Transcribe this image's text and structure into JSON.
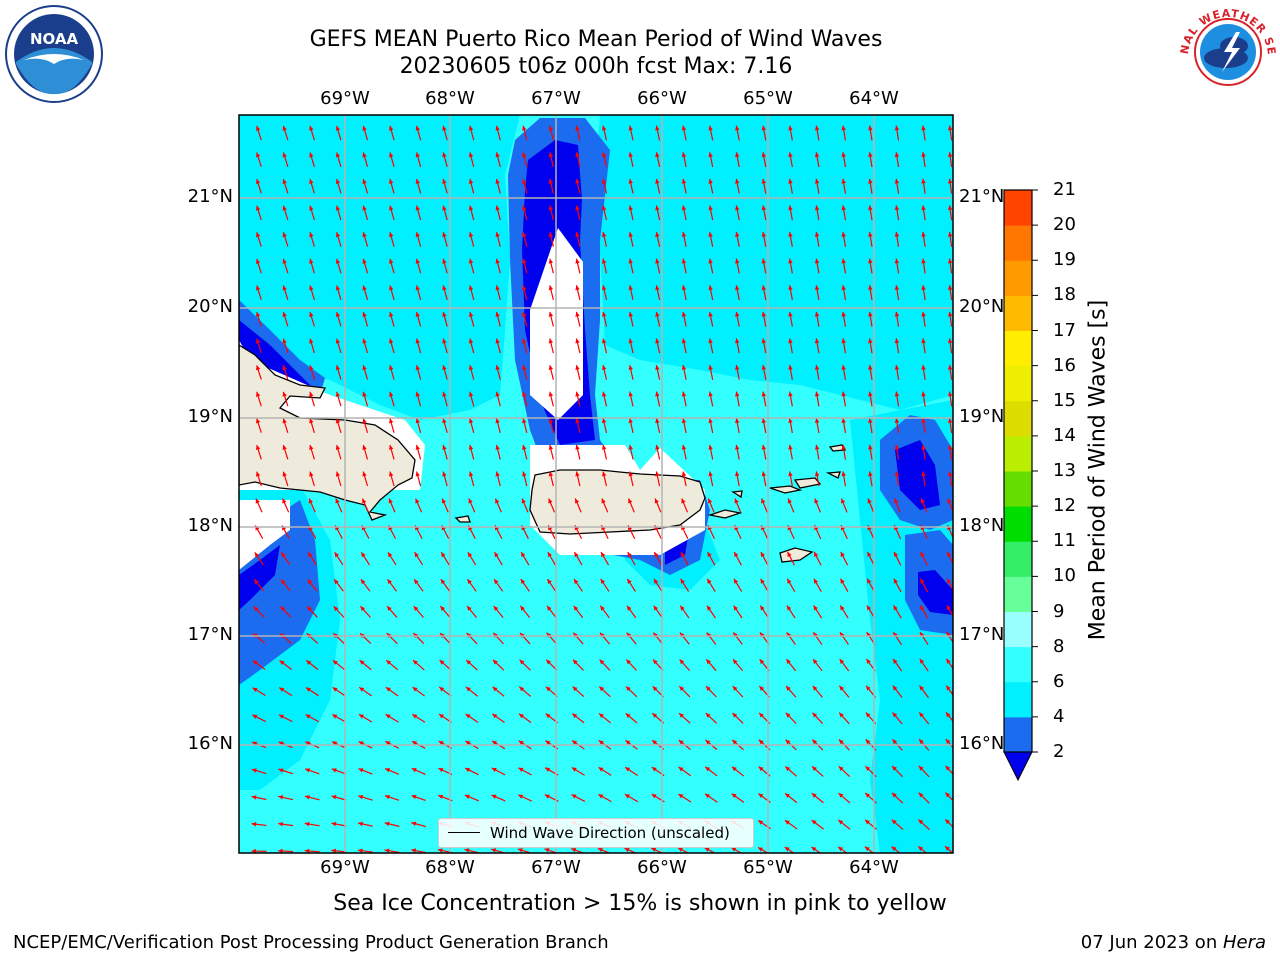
{
  "title": {
    "line1": "GEFS MEAN Puerto Rico Mean Period of Wind Waves",
    "line2": "20230605 t06z 000h fcst   Max: 7.16"
  },
  "map": {
    "lon_labels": [
      "69°W",
      "68°W",
      "67°W",
      "66°W",
      "65°W",
      "64°W"
    ],
    "lat_labels": [
      "21°N",
      "20°N",
      "19°N",
      "18°N",
      "17°N",
      "16°N"
    ],
    "legend_label": "Wind Wave Direction (unscaled)",
    "arrow_color": "#ff0000",
    "land_color": "#eeebdc",
    "grid_color": "#b4b4b4"
  },
  "colorbar": {
    "title": "Mean Period of Wind Waves [s]",
    "ticks": [
      "2",
      "4",
      "6",
      "8",
      "9",
      "10",
      "11",
      "12",
      "13",
      "14",
      "15",
      "16",
      "17",
      "18",
      "19",
      "20",
      "21"
    ],
    "colors": [
      "#1c6cf0",
      "#00f0ff",
      "#33ffff",
      "#99ffff",
      "#66ff99",
      "#33ee66",
      "#00dd00",
      "#66dd00",
      "#bbee00",
      "#dddd00",
      "#eeee00",
      "#ffee00",
      "#ffbb00",
      "#ff9900",
      "#ff7700",
      "#ff4400",
      "#ff0000"
    ],
    "under_color": "#0000ee"
  },
  "note": "Sea Ice Concentration > 15% is shown in pink to yellow",
  "credit_left": "NCEP/EMC/Verification Post Processing Product Generation Branch",
  "credit_right_prefix": "07 Jun 2023 on ",
  "credit_right_host": "Hera",
  "logos": {
    "noaa_text": "NOAA",
    "nws_text": "NATIONAL WEATHER SERVICE"
  }
}
